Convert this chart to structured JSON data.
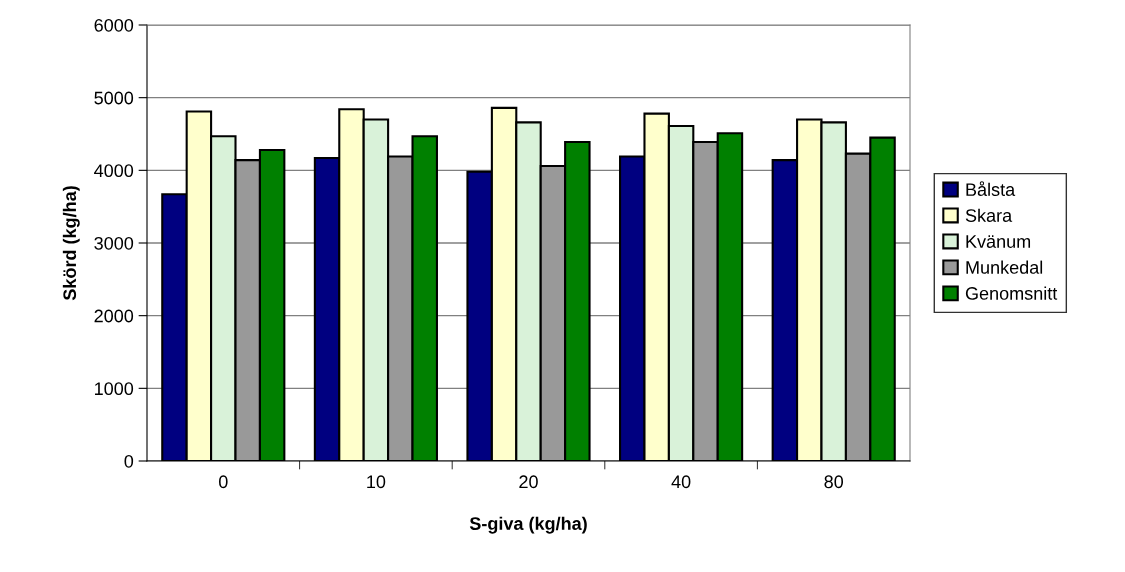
{
  "chart_data": {
    "type": "bar",
    "xlabel": "S-giva (kg/ha)",
    "ylabel": "Skörd (kg/ha)",
    "categories": [
      "0",
      "10",
      "20",
      "40",
      "80"
    ],
    "series": [
      {
        "name": "Bålsta",
        "color": "#000080",
        "values": [
          3670,
          4170,
          3980,
          4190,
          4140
        ]
      },
      {
        "name": "Skara",
        "color": "#ffffcc",
        "values": [
          4810,
          4840,
          4860,
          4780,
          4700
        ]
      },
      {
        "name": "Kvänum",
        "color": "#d9f2d9",
        "values": [
          4470,
          4700,
          4660,
          4610,
          4660
        ]
      },
      {
        "name": "Munkedal",
        "color": "#999999",
        "values": [
          4140,
          4190,
          4060,
          4390,
          4230
        ]
      },
      {
        "name": "Genomsnitt",
        "color": "#008000",
        "values": [
          4280,
          4470,
          4390,
          4510,
          4450
        ]
      }
    ],
    "ylim": [
      0,
      6000
    ],
    "yticks": [
      0,
      1000,
      2000,
      3000,
      4000,
      5000,
      6000
    ],
    "grid": "y",
    "legend": "right"
  }
}
